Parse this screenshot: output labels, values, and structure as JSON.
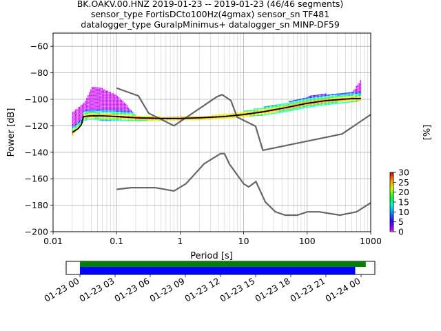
{
  "chart_data": [
    {
      "type": "heatmap",
      "title_lines": [
        "BK.OAKV.00.HNZ   2019-01-23 -- 2019-01-23  (46/46 segments)",
        "sensor_type FortisDCto100Hz(4gmax) sensor_sn TF481",
        "datalogger_type GuralpMinimus+ datalogger_sn MINP-DF59"
      ],
      "xlabel": "Period [s]",
      "ylabel": "Power [dB]",
      "xscale": "log",
      "xlim": [
        0.01,
        1000
      ],
      "ylim": [
        -200,
        -50
      ],
      "xticks": [
        0.01,
        0.1,
        1,
        10,
        100,
        1000
      ],
      "xtick_labels": [
        "0.01",
        "0.1",
        "1",
        "10",
        "100",
        "1000"
      ],
      "yticks": [
        -200,
        -180,
        -160,
        -140,
        -120,
        -100,
        -80,
        -60
      ],
      "ytick_labels": [
        "−200",
        "−180",
        "−160",
        "−140",
        "−120",
        "−100",
        "−80",
        "−60"
      ],
      "grid": true,
      "colorbar": {
        "label": "[%]",
        "range": [
          0,
          30
        ],
        "ticks": [
          0,
          5,
          10,
          15,
          20,
          25,
          30
        ],
        "tick_labels": [
          "0",
          "5",
          "10",
          "15",
          "20",
          "25",
          "30"
        ]
      },
      "series": [
        {
          "role": "high-noise-model",
          "color": "#666666",
          "x": [
            0.1,
            0.22,
            0.32,
            0.8,
            3.8,
            4.6,
            6.3,
            7.9,
            15.4,
            20,
            354,
            1000
          ],
          "y": [
            -91.5,
            -97.4,
            -110.5,
            -120,
            -98,
            -96.5,
            -101,
            -113.5,
            -120.3,
            -138.5,
            -126.2,
            -111.5
          ]
        },
        {
          "role": "low-noise-model",
          "color": "#666666",
          "x": [
            0.1,
            0.17,
            0.4,
            0.8,
            1.24,
            2.4,
            4.3,
            5,
            6,
            10,
            12,
            15.6,
            21.9,
            31.6,
            45,
            70,
            101,
            154,
            328,
            600,
            1000
          ],
          "y": [
            -168,
            -166.7,
            -166.7,
            -169.2,
            -163.7,
            -148.6,
            -141.1,
            -141.1,
            -149,
            -163.8,
            -166.2,
            -162.1,
            -177.5,
            -185,
            -187.5,
            -187.5,
            -185,
            -185,
            -187.5,
            -185,
            -178.2
          ]
        },
        {
          "role": "mode",
          "color": "#000000",
          "x": [
            0.02,
            0.025,
            0.028,
            0.03,
            0.04,
            0.06,
            0.1,
            0.2,
            0.5,
            1,
            2,
            5,
            10,
            20,
            50,
            100,
            200,
            500,
            700
          ],
          "y": [
            -125,
            -122,
            -119,
            -113,
            -112.5,
            -112.5,
            -113,
            -114,
            -114.5,
            -114.5,
            -114,
            -113,
            -111.5,
            -109.5,
            -106,
            -103,
            -101,
            -99.5,
            -99.5
          ]
        },
        {
          "role": "psd-band",
          "x": [
            0.02,
            0.03,
            0.04,
            0.06,
            0.1,
            0.2,
            0.5,
            1,
            2,
            5,
            10,
            20,
            50,
            100,
            200,
            500,
            700
          ],
          "upper": [
            -110,
            -103,
            -91,
            -92,
            -97,
            -112,
            -113,
            -113,
            -113,
            -111,
            -109,
            -106,
            -102,
            -98,
            -96,
            -95,
            -85
          ],
          "lower": [
            -127,
            -116,
            -115,
            -116,
            -116,
            -116,
            -116,
            -115.5,
            -115.5,
            -114.5,
            -113,
            -112,
            -109,
            -106,
            -104,
            -102,
            -101
          ]
        }
      ]
    },
    {
      "type": "timeline",
      "xlim": [
        "01-23 00",
        "01-24 00"
      ],
      "tick_labels": [
        "01-23 00",
        "01-23 03",
        "01-23 06",
        "01-23 09",
        "01-23 12",
        "01-23 15",
        "01-23 18",
        "01-23 21",
        "01-24 00"
      ],
      "bars": [
        {
          "role": "data-coverage",
          "color": "#008000",
          "start_hours": 0,
          "end_hours": 24.4
        },
        {
          "role": "psd-coverage",
          "color": "#0000ff",
          "start_hours": 0,
          "end_hours": 23.5
        }
      ]
    }
  ]
}
